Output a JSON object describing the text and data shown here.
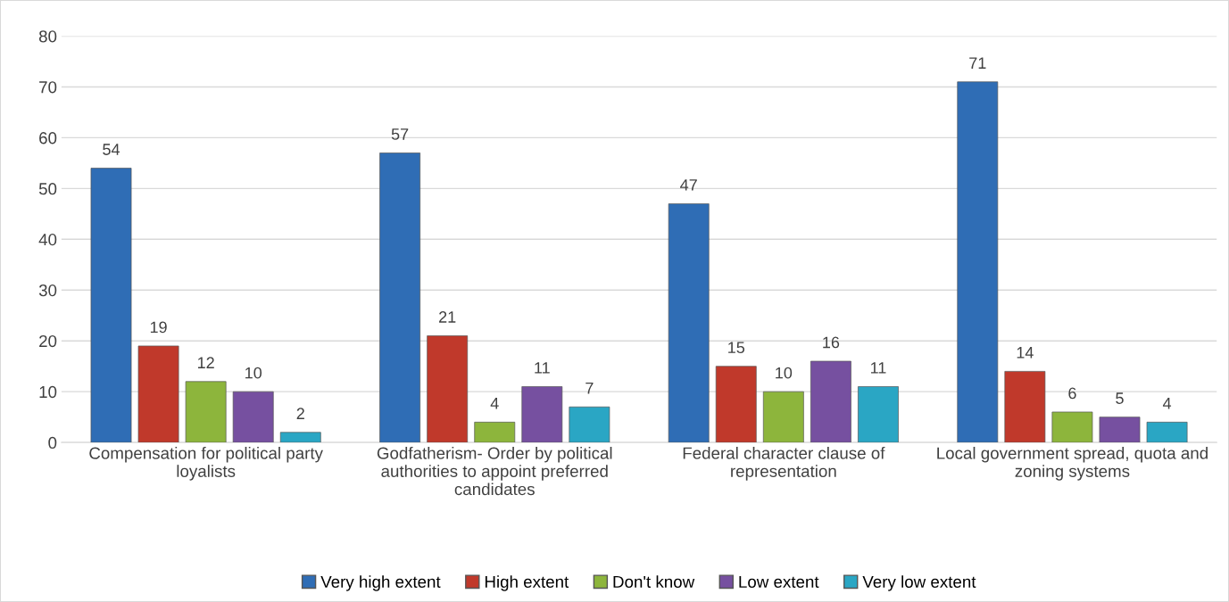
{
  "chart_data": {
    "type": "bar",
    "categories": [
      "Compensation for political party loyalists",
      "Godfatherism- Order by political authorities to appoint preferred candidates",
      "Federal character clause of representation",
      "Local government spread, quota and zoning systems"
    ],
    "series": [
      {
        "name": "Very high extent",
        "color": "#2f6db5",
        "values": [
          54,
          57,
          47,
          71
        ]
      },
      {
        "name": "High extent",
        "color": "#c0392b",
        "values": [
          19,
          21,
          15,
          14
        ]
      },
      {
        "name": "Don't know",
        "color": "#8db53c",
        "values": [
          12,
          4,
          10,
          6
        ]
      },
      {
        "name": "Low extent",
        "color": "#7650a0",
        "values": [
          10,
          11,
          16,
          5
        ]
      },
      {
        "name": "Very low extent",
        "color": "#2aa6c4",
        "values": [
          2,
          7,
          11,
          4
        ]
      }
    ],
    "ylim": [
      0,
      80
    ],
    "yticks": [
      0,
      10,
      20,
      30,
      40,
      50,
      60,
      70,
      80
    ],
    "grid": "y",
    "legend": "bottom",
    "data_labels": true
  }
}
